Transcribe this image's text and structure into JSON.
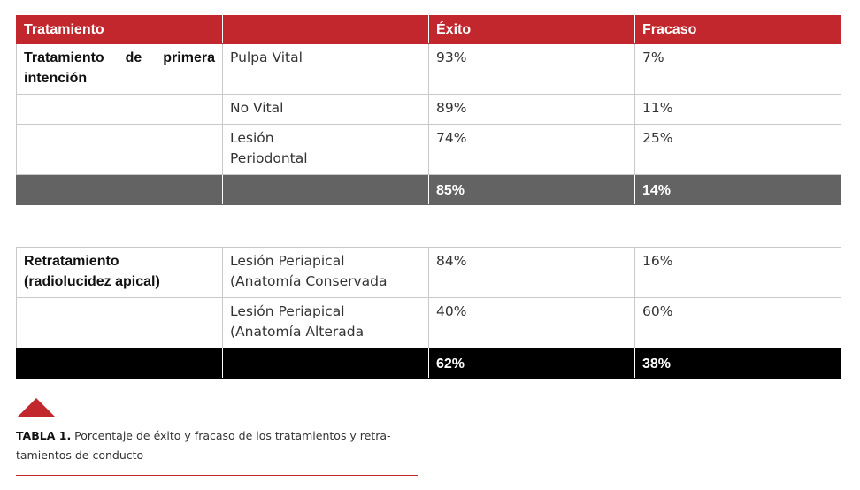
{
  "table1": {
    "headers": [
      "Tratamiento",
      "",
      "Éxito",
      "Fracaso"
    ],
    "group_label": "Tratamiento de primera intención",
    "rows": [
      {
        "cond": "Pulpa Vital",
        "exito": "93%",
        "fracaso": "7%"
      },
      {
        "cond": "No Vital",
        "exito": "89%",
        "fracaso": "11%"
      },
      {
        "cond_l1": "Lesión",
        "cond_l2": "Periodontal",
        "exito": "74%",
        "fracaso": "25%"
      }
    ],
    "totals": {
      "exito": "85%",
      "fracaso": "14%"
    }
  },
  "table2": {
    "group_label_l1": "Retratamiento",
    "group_label_l2": "(radiolucidez apical)",
    "rows": [
      {
        "cond_l1": "Lesión Periapical",
        "cond_l2": "(Anatomía Conservada",
        "exito": "84%",
        "fracaso": "16%"
      },
      {
        "cond_l1": "Lesión Periapical",
        "cond_l2": "(Anatomía Alterada",
        "exito": "40%",
        "fracaso": "60%"
      }
    ],
    "totals": {
      "exito": "62%",
      "fracaso": "38%"
    }
  },
  "caption": {
    "label": "TABLA 1.",
    "text": " Porcentaje de éxito y fracaso de los tratamientos y retra-tamientos de conducto"
  },
  "colors": {
    "accent": "#c1272d",
    "gray_total": "#636363",
    "black_total": "#000000"
  }
}
